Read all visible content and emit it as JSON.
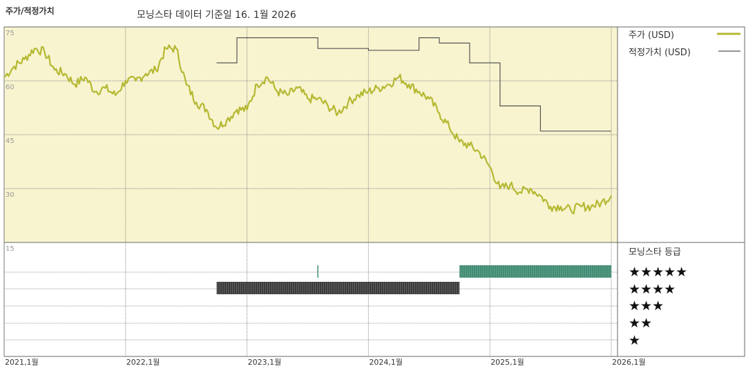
{
  "chart_data": {
    "type": "line",
    "title": "주가/적정가치",
    "subtitle": "모닝스타 데이터 기준일 16. 1월 2026",
    "x_start": "2021-01",
    "x_end": "2026-01",
    "x_ticks": [
      "2021,1월",
      "2022,1월",
      "2023,1월",
      "2024,1월",
      "2025,1월",
      "2026,1월"
    ],
    "y_ticks": [
      "75",
      "60",
      "45",
      "30",
      "15"
    ],
    "ylim": [
      15,
      75
    ],
    "grid": true,
    "legend_position": "right",
    "series": [
      {
        "name": "주가 (USD)",
        "color": "#b5b832",
        "points": [
          [
            "2021-01",
            61
          ],
          [
            "2021-02",
            64
          ],
          [
            "2021-03",
            66
          ],
          [
            "2021-04",
            69
          ],
          [
            "2021-05",
            68
          ],
          [
            "2021-06",
            63
          ],
          [
            "2021-07",
            62
          ],
          [
            "2021-08",
            59
          ],
          [
            "2021-09",
            61
          ],
          [
            "2021-10",
            57
          ],
          [
            "2021-11",
            58
          ],
          [
            "2021-12",
            56
          ],
          [
            "2022-01",
            60
          ],
          [
            "2022-02",
            60
          ],
          [
            "2022-03",
            62
          ],
          [
            "2022-04",
            63
          ],
          [
            "2022-05",
            69
          ],
          [
            "2022-06",
            69
          ],
          [
            "2022-07",
            59
          ],
          [
            "2022-08",
            54
          ],
          [
            "2022-09",
            52
          ],
          [
            "2022-10",
            47
          ],
          [
            "2022-11",
            49
          ],
          [
            "2022-12",
            52
          ],
          [
            "2023-01",
            52
          ],
          [
            "2023-02",
            59
          ],
          [
            "2023-03",
            61
          ],
          [
            "2023-04",
            57
          ],
          [
            "2023-05",
            56
          ],
          [
            "2023-06",
            58
          ],
          [
            "2023-07",
            55
          ],
          [
            "2023-08",
            55
          ],
          [
            "2023-09",
            53
          ],
          [
            "2023-10",
            51
          ],
          [
            "2023-11",
            54
          ],
          [
            "2023-12",
            56
          ],
          [
            "2024-01",
            57
          ],
          [
            "2024-02",
            58
          ],
          [
            "2024-03",
            59
          ],
          [
            "2024-04",
            61
          ],
          [
            "2024-05",
            59
          ],
          [
            "2024-06",
            57
          ],
          [
            "2024-07",
            55
          ],
          [
            "2024-08",
            51
          ],
          [
            "2024-09",
            47
          ],
          [
            "2024-10",
            43
          ],
          [
            "2024-11",
            42
          ],
          [
            "2024-12",
            40
          ],
          [
            "2025-01",
            36
          ],
          [
            "2025-02",
            30
          ],
          [
            "2025-03",
            31
          ],
          [
            "2025-04",
            29
          ],
          [
            "2025-05",
            30
          ],
          [
            "2025-06",
            28
          ],
          [
            "2025-07",
            25
          ],
          [
            "2025-08",
            25
          ],
          [
            "2025-09",
            24
          ],
          [
            "2025-10",
            25
          ],
          [
            "2025-11",
            25
          ],
          [
            "2025-12",
            26
          ],
          [
            "2026-01",
            28
          ]
        ]
      },
      {
        "name": "적정가치 (USD)",
        "color": "#555555",
        "points": [
          [
            "2022-10",
            65
          ],
          [
            "2022-12",
            65
          ],
          [
            "2022-12",
            72
          ],
          [
            "2023-08",
            72
          ],
          [
            "2023-08",
            69
          ],
          [
            "2024-01",
            69
          ],
          [
            "2024-01",
            68.5
          ],
          [
            "2024-06",
            68.5
          ],
          [
            "2024-06",
            72
          ],
          [
            "2024-08",
            72
          ],
          [
            "2024-08",
            70.5
          ],
          [
            "2024-11",
            70.5
          ],
          [
            "2024-11",
            65
          ],
          [
            "2025-02",
            65
          ],
          [
            "2025-02",
            53
          ],
          [
            "2025-06",
            53
          ],
          [
            "2025-06",
            46
          ],
          [
            "2026-01",
            46
          ]
        ]
      }
    ],
    "rating": {
      "title": "모닝스타 등급",
      "stars": [
        "★★★★★",
        "★★★★",
        "★★★",
        "★★",
        "★"
      ],
      "periods": [
        {
          "level": 4,
          "start": "2022-10",
          "end": "2024-10",
          "color": "#3a3a3a"
        },
        {
          "level": 5,
          "start": "2023-08",
          "end": "2023-08",
          "color": "#3e8a72"
        },
        {
          "level": 5,
          "start": "2024-10",
          "end": "2026-01",
          "color": "#3e8a72"
        }
      ]
    }
  }
}
